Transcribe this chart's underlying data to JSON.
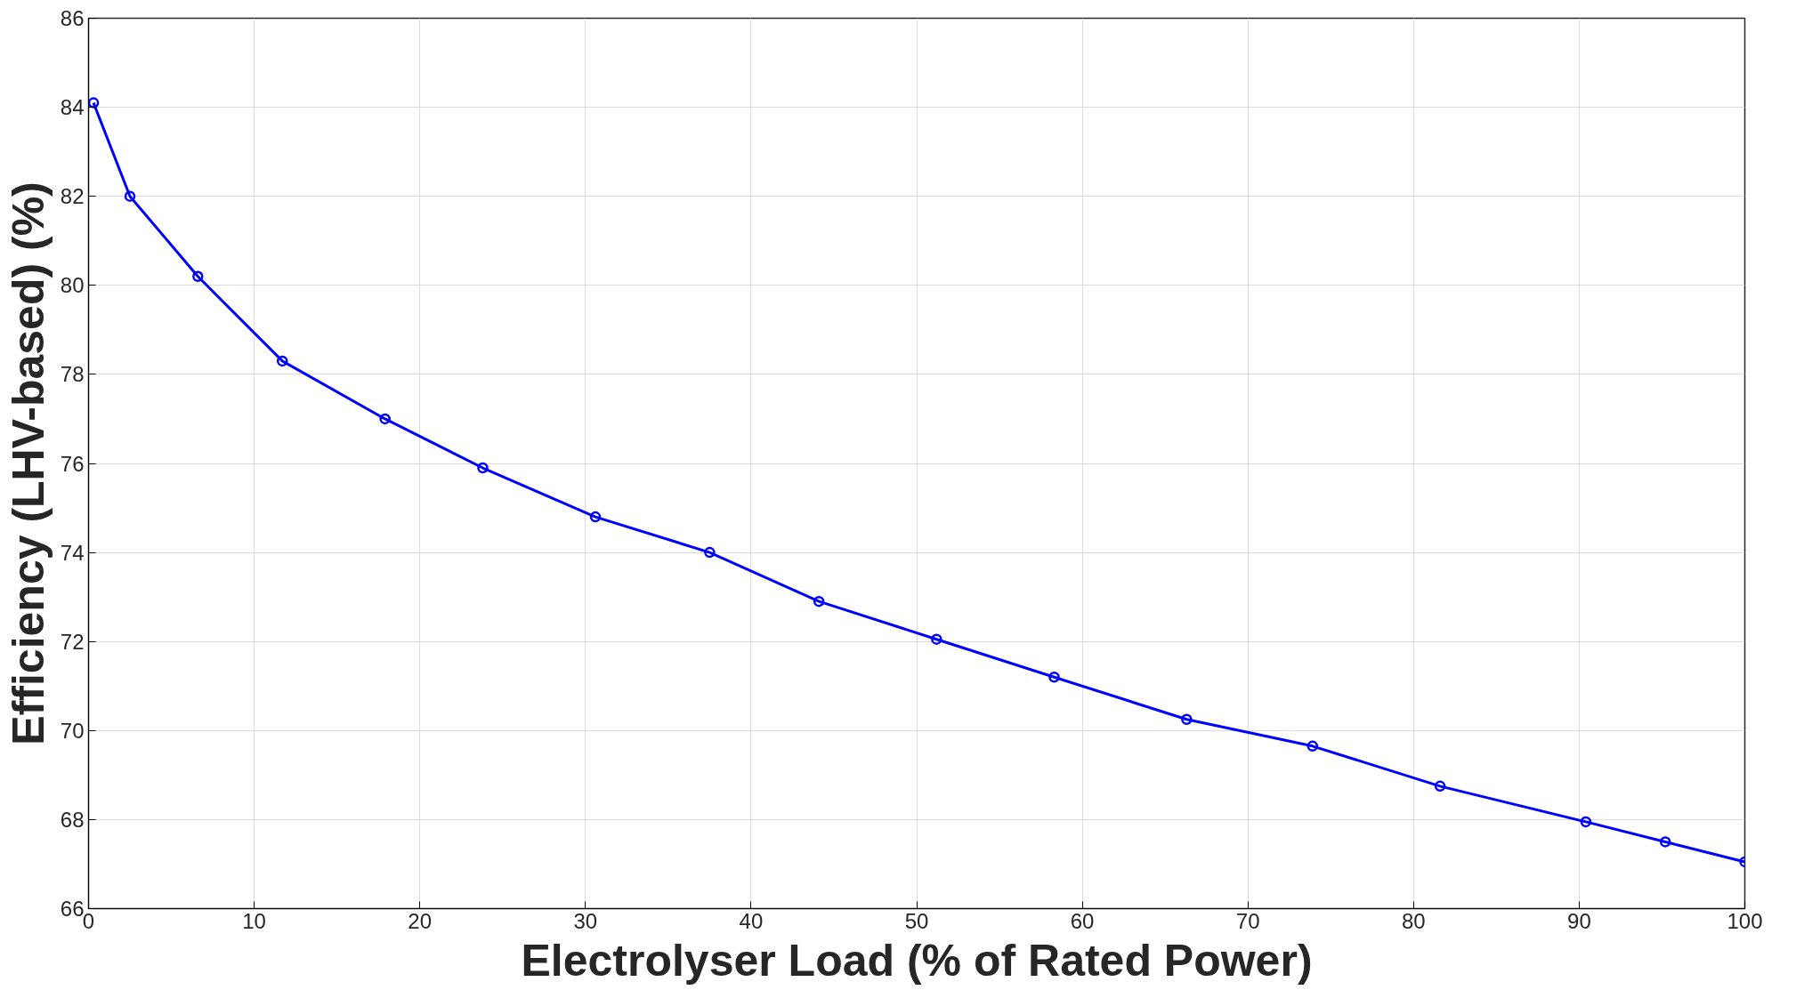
{
  "chart_data": {
    "type": "line",
    "xlabel": "Electrolyser Load (% of Rated Power)",
    "ylabel": "Efficiency (LHV-based) (%)",
    "x": [
      0.3,
      2.5,
      6.6,
      11.7,
      17.9,
      23.8,
      30.6,
      37.5,
      44.1,
      51.2,
      58.3,
      66.3,
      73.9,
      81.6,
      90.4,
      95.2,
      100
    ],
    "series": [
      {
        "color": "#0000ff",
        "values": [
          84.1,
          82.0,
          80.2,
          78.3,
          77.0,
          75.9,
          74.8,
          74.0,
          72.9,
          72.05,
          71.2,
          70.25,
          69.65,
          68.75,
          67.95,
          67.5,
          67.05
        ]
      }
    ],
    "xlim": [
      0,
      100
    ],
    "xticks": [
      0,
      10,
      20,
      30,
      40,
      50,
      60,
      70,
      80,
      90,
      100
    ],
    "ylim": [
      66,
      86
    ],
    "yticks": [
      66,
      68,
      70,
      72,
      74,
      76,
      78,
      80,
      82,
      84,
      86
    ],
    "grid": true,
    "marker": "circle",
    "line_style": "solid"
  }
}
